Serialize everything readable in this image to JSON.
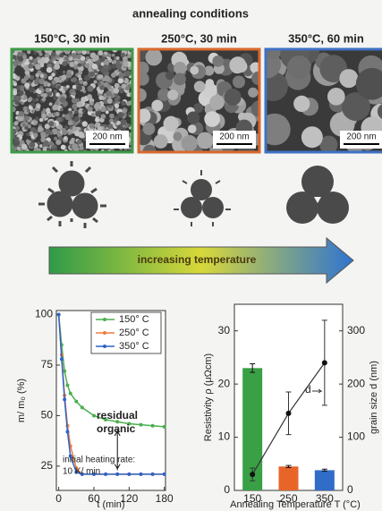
{
  "header": {
    "title": "annealing conditions",
    "panels": [
      {
        "label": "150°C, 30 min",
        "scale": "200 nm",
        "color": "#3f9a48"
      },
      {
        "label": "250°C, 30 min",
        "scale": "200 nm",
        "color": "#d9692e"
      },
      {
        "label": "350°C, 60 min",
        "scale": "200 nm",
        "color": "#3d72c4"
      }
    ]
  },
  "arrow_label": "increasing temperature",
  "chart_data": [
    {
      "type": "line",
      "xlabel": "t (min)",
      "ylabel": "m/ m₀ (%)",
      "x": [
        0,
        5,
        10,
        15,
        20,
        30,
        40,
        60,
        80,
        100,
        120,
        140,
        160,
        180
      ],
      "series": [
        {
          "name": "150° C",
          "color": "#4caf50",
          "values": [
            100,
            85,
            72,
            65,
            61,
            57,
            54,
            50,
            48,
            47,
            46,
            45.5,
            45,
            44.5
          ]
        },
        {
          "name": "250° C",
          "color": "#ef7d3b",
          "values": [
            100,
            80,
            60,
            45,
            35,
            24,
            21,
            21,
            21,
            21,
            21,
            21,
            21,
            21
          ]
        },
        {
          "name": "350° C",
          "color": "#2f64c8",
          "values": [
            100,
            78,
            58,
            42,
            30,
            22,
            21,
            21,
            21,
            21,
            21,
            21,
            21,
            21
          ]
        }
      ],
      "xlim": [
        -4,
        182
      ],
      "xticks": [
        0,
        60,
        120,
        180
      ],
      "ylim": [
        13,
        102
      ],
      "yticks": [
        25,
        50,
        75,
        100
      ],
      "annotations": [
        "residual",
        "organic",
        "initial heating rate:",
        "10 K/ min"
      ]
    },
    {
      "type": "bar",
      "xlabel": "Annealing Temperature T (°C)",
      "ylabel": "Resistivity ρ (μΩcm)",
      "y2label": "grain size d (nm)",
      "categories": [
        "150",
        "250",
        "350"
      ],
      "bars": {
        "values": [
          23,
          4.5,
          3.8
        ],
        "errors": [
          0.8,
          0.2,
          0.2
        ],
        "colors": [
          "#3aa045",
          "#e8652a",
          "#2f6dc8"
        ]
      },
      "line": {
        "values": [
          30,
          145,
          240
        ],
        "errors": [
          12,
          40,
          80
        ],
        "axis": "y2",
        "color": "#333333"
      },
      "ylim": [
        0,
        35
      ],
      "yticks": [
        0,
        10,
        20,
        30
      ],
      "y2lim": [
        0,
        350
      ],
      "y2ticks": [
        0,
        100,
        200,
        300
      ],
      "annotations": [
        "d"
      ]
    }
  ]
}
